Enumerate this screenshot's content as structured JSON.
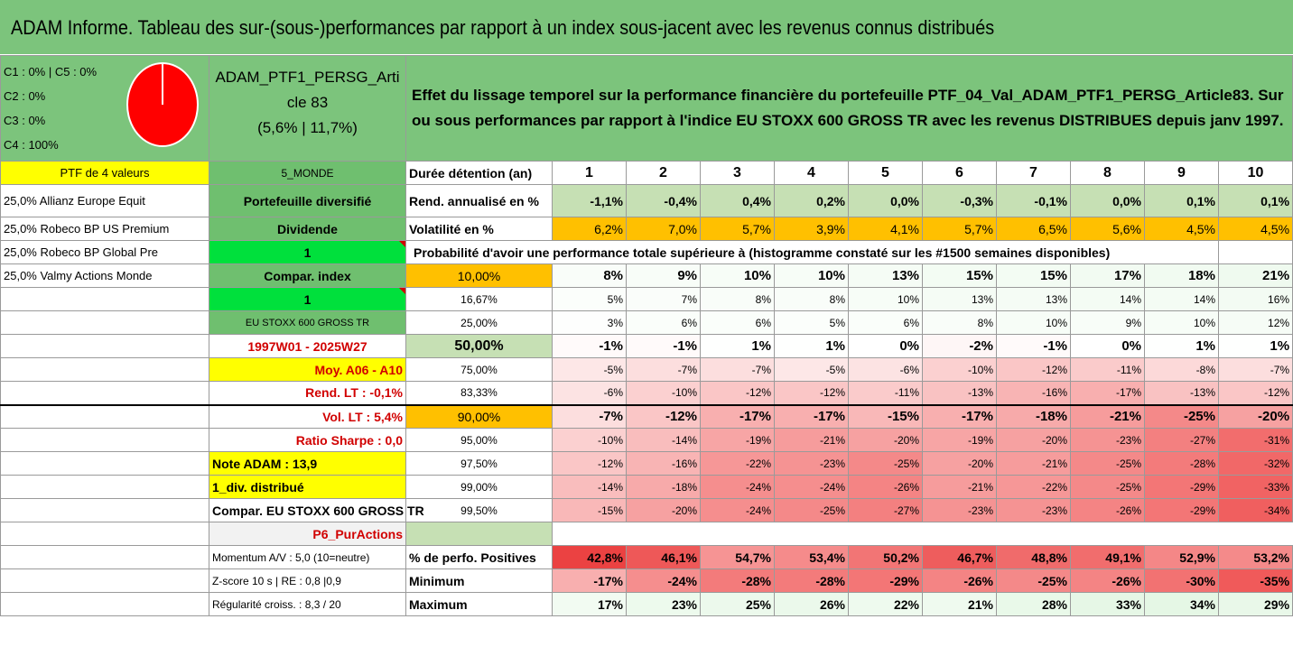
{
  "title": "ADAM Informe. Tableau des sur-(sous-)performances par rapport à un index sous-jacent avec les revenus connus distribués",
  "summary": {
    "categories": [
      "C1 : 0% | C5 : 0%",
      "C2 : 0%",
      "C3 : 0%",
      "C4 : 100%"
    ],
    "pie_color": "#ff0000",
    "portfolio_name": "ADAM_PTF1_PERSG_Article 83",
    "portfolio_stats": "(5,6% | 11,7%)",
    "description": "Effet du lissage temporel sur la performance financière du portefeuille PTF_04_Val_ADAM_PTF1_PERSG_Article83. Sur ou sous performances par rapport à l'indice EU STOXX 600 GROSS TR avec les revenus DISTRIBUES depuis janv 1997."
  },
  "left_col": [
    "PTF de 4 valeurs",
    "25,0% Allianz Europe Equit",
    "25,0% Robeco BP US Premium",
    "25,0% Robeco BP Global Pre",
    "25,0% Valmy Actions Monde"
  ],
  "mid_col": [
    "5_MONDE",
    "Portefeuille diversifié",
    "Dividende",
    "1",
    "Compar. index",
    "1",
    "EU STOXX 600 GROSS TR",
    "1997W01 - 2025W27",
    "Moy. A06 - A10",
    "Rend. LT : -0,1%",
    "Vol. LT : 5,4%",
    "Ratio Sharpe : 0,0",
    "Note ADAM : 13,9",
    "1_div. distribué",
    "Compar. EU STOXX 600 GROSS TR",
    "P6_PurActions",
    "Momentum A/V : 5,0 (10=neutre)",
    "Z-score 10 s | RE : 0,8 |0,9",
    "Régularité croiss. : 8,3 / 20"
  ],
  "header": {
    "label": "Durée détention (an)",
    "years": [
      "1",
      "2",
      "3",
      "4",
      "5",
      "6",
      "7",
      "8",
      "9",
      "10"
    ]
  },
  "rend": {
    "label": "Rend. annualisé en %",
    "values": [
      "-1,1%",
      "-0,4%",
      "0,4%",
      "0,2%",
      "0,0%",
      "-0,3%",
      "-0,1%",
      "0,0%",
      "0,1%",
      "0,1%"
    ]
  },
  "vol": {
    "label": "Volatilité en %",
    "values": [
      "6,2%",
      "7,0%",
      "5,7%",
      "3,9%",
      "4,1%",
      "5,7%",
      "6,5%",
      "5,6%",
      "4,5%",
      "4,5%"
    ]
  },
  "prob_title": "Probabilité d'avoir une performance totale supérieure à (histogramme constaté sur les #1500 semaines disponibles)",
  "quantiles": [
    {
      "label": "10,00%",
      "values": [
        "8%",
        "9%",
        "10%",
        "10%",
        "13%",
        "15%",
        "15%",
        "17%",
        "18%",
        "21%"
      ]
    },
    {
      "label": "16,67%",
      "values": [
        "5%",
        "7%",
        "8%",
        "8%",
        "10%",
        "13%",
        "13%",
        "14%",
        "14%",
        "16%"
      ]
    },
    {
      "label": "25,00%",
      "values": [
        "3%",
        "6%",
        "6%",
        "5%",
        "6%",
        "8%",
        "10%",
        "9%",
        "10%",
        "12%"
      ]
    },
    {
      "label": "50,00%",
      "values": [
        "-1%",
        "-1%",
        "1%",
        "1%",
        "0%",
        "-2%",
        "-1%",
        "0%",
        "1%",
        "1%"
      ]
    },
    {
      "label": "75,00%",
      "values": [
        "-5%",
        "-7%",
        "-7%",
        "-5%",
        "-6%",
        "-10%",
        "-12%",
        "-11%",
        "-8%",
        "-7%"
      ]
    },
    {
      "label": "83,33%",
      "values": [
        "-6%",
        "-10%",
        "-12%",
        "-12%",
        "-11%",
        "-13%",
        "-16%",
        "-17%",
        "-13%",
        "-12%"
      ]
    },
    {
      "label": "90,00%",
      "values": [
        "-7%",
        "-12%",
        "-17%",
        "-17%",
        "-15%",
        "-17%",
        "-18%",
        "-21%",
        "-25%",
        "-20%"
      ]
    },
    {
      "label": "95,00%",
      "values": [
        "-10%",
        "-14%",
        "-19%",
        "-21%",
        "-20%",
        "-19%",
        "-20%",
        "-23%",
        "-27%",
        "-31%"
      ]
    },
    {
      "label": "97,50%",
      "values": [
        "-12%",
        "-16%",
        "-22%",
        "-23%",
        "-25%",
        "-20%",
        "-21%",
        "-25%",
        "-28%",
        "-32%"
      ]
    },
    {
      "label": "99,00%",
      "values": [
        "-14%",
        "-18%",
        "-24%",
        "-24%",
        "-26%",
        "-21%",
        "-22%",
        "-25%",
        "-29%",
        "-33%"
      ]
    },
    {
      "label": "99,50%",
      "values": [
        "-15%",
        "-20%",
        "-24%",
        "-25%",
        "-27%",
        "-23%",
        "-23%",
        "-26%",
        "-29%",
        "-34%"
      ]
    }
  ],
  "positives": {
    "label": "% de perfo. Positives",
    "values": [
      "42,8%",
      "46,1%",
      "54,7%",
      "53,4%",
      "50,2%",
      "46,7%",
      "48,8%",
      "49,1%",
      "52,9%",
      "53,2%"
    ]
  },
  "minimum": {
    "label": "Minimum",
    "values": [
      "-17%",
      "-24%",
      "-28%",
      "-28%",
      "-29%",
      "-26%",
      "-25%",
      "-26%",
      "-30%",
      "-35%"
    ]
  },
  "maximum": {
    "label": "Maximum",
    "values": [
      "17%",
      "23%",
      "25%",
      "26%",
      "22%",
      "21%",
      "28%",
      "33%",
      "34%",
      "29%"
    ]
  }
}
